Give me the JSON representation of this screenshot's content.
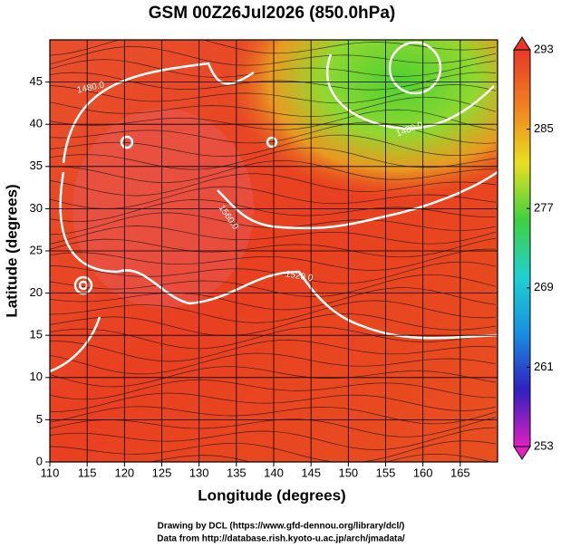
{
  "chart_data": {
    "type": "map",
    "title": "GSM 00Z26Jul2026 (850.0hPa)",
    "x_label": "Longitude (degrees)",
    "y_label": "Latitude  (degrees)",
    "xlim": [
      110,
      170
    ],
    "ylim": [
      0,
      50
    ],
    "xticks": [
      110,
      115,
      120,
      125,
      130,
      135,
      140,
      145,
      150,
      155,
      160,
      165
    ],
    "yticks": [
      0,
      5,
      10,
      15,
      20,
      25,
      30,
      35,
      40,
      45
    ],
    "grid": true,
    "colorbar": {
      "range": [
        253,
        293
      ],
      "ticks": [
        253,
        261,
        269,
        277,
        285,
        293
      ],
      "colors": [
        "#e020c0",
        "#3020c0",
        "#1890e0",
        "#20d0d0",
        "#40d040",
        "#e8e020",
        "#f08020",
        "#e83828"
      ]
    },
    "contour_labels": [
      "1480.0",
      "1560.0",
      "1520.0",
      "1480.0"
    ],
    "footer": [
      "Drawing by DCL (https://www.gfd-dennou.org/library/dcl/)",
      "Data from http://database.rish.kyoto-u.ac.jp/arch/jmadata/"
    ]
  }
}
